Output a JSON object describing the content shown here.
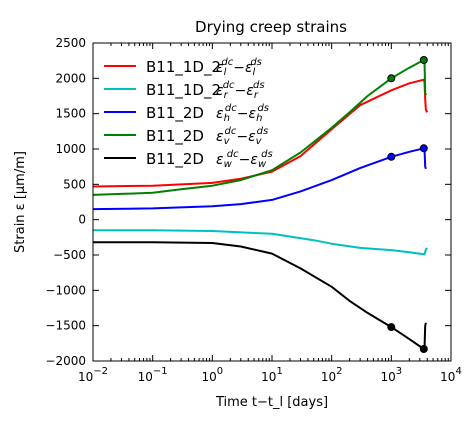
{
  "chart_data": {
    "type": "line",
    "title": "Drying creep strains",
    "xlabel": "Time t−t_l [days]",
    "ylabel": "Strain ε [μm/m]",
    "xscale": "log",
    "xlim": [
      0.01,
      10000
    ],
    "ylim": [
      -2000,
      2500
    ],
    "xticks": [
      {
        "value": 0.01,
        "base": "10",
        "exp": "−2"
      },
      {
        "value": 0.1,
        "base": "10",
        "exp": "−1"
      },
      {
        "value": 1,
        "base": "10",
        "exp": "0"
      },
      {
        "value": 10,
        "base": "10",
        "exp": "1"
      },
      {
        "value": 100,
        "base": "10",
        "exp": "2"
      },
      {
        "value": 1000,
        "base": "10",
        "exp": "3"
      },
      {
        "value": 10000,
        "base": "10",
        "exp": "4"
      }
    ],
    "yticks": [
      {
        "value": 2500,
        "label": "2500"
      },
      {
        "value": 2000,
        "label": "2000"
      },
      {
        "value": 1500,
        "label": "1500"
      },
      {
        "value": 1000,
        "label": "1000"
      },
      {
        "value": 500,
        "label": "500"
      },
      {
        "value": 0,
        "label": "0"
      },
      {
        "value": -500,
        "label": "−500"
      },
      {
        "value": -1000,
        "label": "−1000"
      },
      {
        "value": -1500,
        "label": "−1500"
      },
      {
        "value": -2000,
        "label": "−2000"
      }
    ],
    "grid": false,
    "legend_position": "top-left",
    "series": [
      {
        "name": "B11_1D_2",
        "sym": "l",
        "color": "#ff0000",
        "x": [
          0.01,
          0.1,
          1,
          3,
          10,
          30,
          100,
          300,
          1000,
          2000,
          3500,
          3600,
          3700,
          3800,
          4000
        ],
        "y": [
          470,
          480,
          520,
          580,
          680,
          900,
          1280,
          1620,
          1830,
          1930,
          1980,
          1950,
          1700,
          1550,
          1520
        ],
        "markers": []
      },
      {
        "name": "B11_1D_2",
        "sym": "r",
        "color": "#00bfbf",
        "x": [
          0.01,
          0.1,
          1,
          10,
          50,
          100,
          300,
          1000,
          2000,
          3500,
          3600,
          3800,
          4000
        ],
        "y": [
          -150,
          -150,
          -160,
          -200,
          -290,
          -340,
          -400,
          -430,
          -460,
          -490,
          -490,
          -420,
          -400
        ],
        "markers": []
      },
      {
        "name": "B11_2D",
        "sym": "h",
        "color": "#0000ff",
        "x": [
          0.01,
          0.1,
          1,
          3,
          10,
          30,
          100,
          300,
          1000,
          2000,
          3500,
          3600,
          3700,
          3800
        ],
        "y": [
          150,
          160,
          190,
          220,
          280,
          400,
          560,
          730,
          890,
          960,
          1010,
          1000,
          750,
          720
        ],
        "markers": [
          {
            "x": 1000,
            "y": 890
          },
          {
            "x": 3500,
            "y": 1010
          }
        ]
      },
      {
        "name": "B11_2D",
        "sym": "v",
        "color": "#008000",
        "x": [
          0.01,
          0.1,
          0.3,
          1,
          3,
          10,
          30,
          100,
          200,
          400,
          1000,
          2000,
          3500,
          3600,
          3700,
          3800
        ],
        "y": [
          350,
          380,
          430,
          480,
          560,
          700,
          950,
          1300,
          1520,
          1750,
          2000,
          2150,
          2260,
          2240,
          1800,
          1760
        ],
        "markers": [
          {
            "x": 1000,
            "y": 2000
          },
          {
            "x": 3500,
            "y": 2260
          }
        ]
      },
      {
        "name": "B11_2D",
        "sym": "w",
        "color": "#000000",
        "x": [
          0.01,
          0.1,
          1,
          3,
          10,
          30,
          100,
          200,
          400,
          1000,
          2000,
          3500,
          3600,
          3700,
          3800
        ],
        "y": [
          -320,
          -320,
          -330,
          -380,
          -480,
          -690,
          -950,
          -1150,
          -1320,
          -1520,
          -1690,
          -1830,
          -1830,
          -1500,
          -1460
        ],
        "markers": [
          {
            "x": 1000,
            "y": -1520
          },
          {
            "x": 3500,
            "y": -1830
          }
        ]
      }
    ]
  }
}
